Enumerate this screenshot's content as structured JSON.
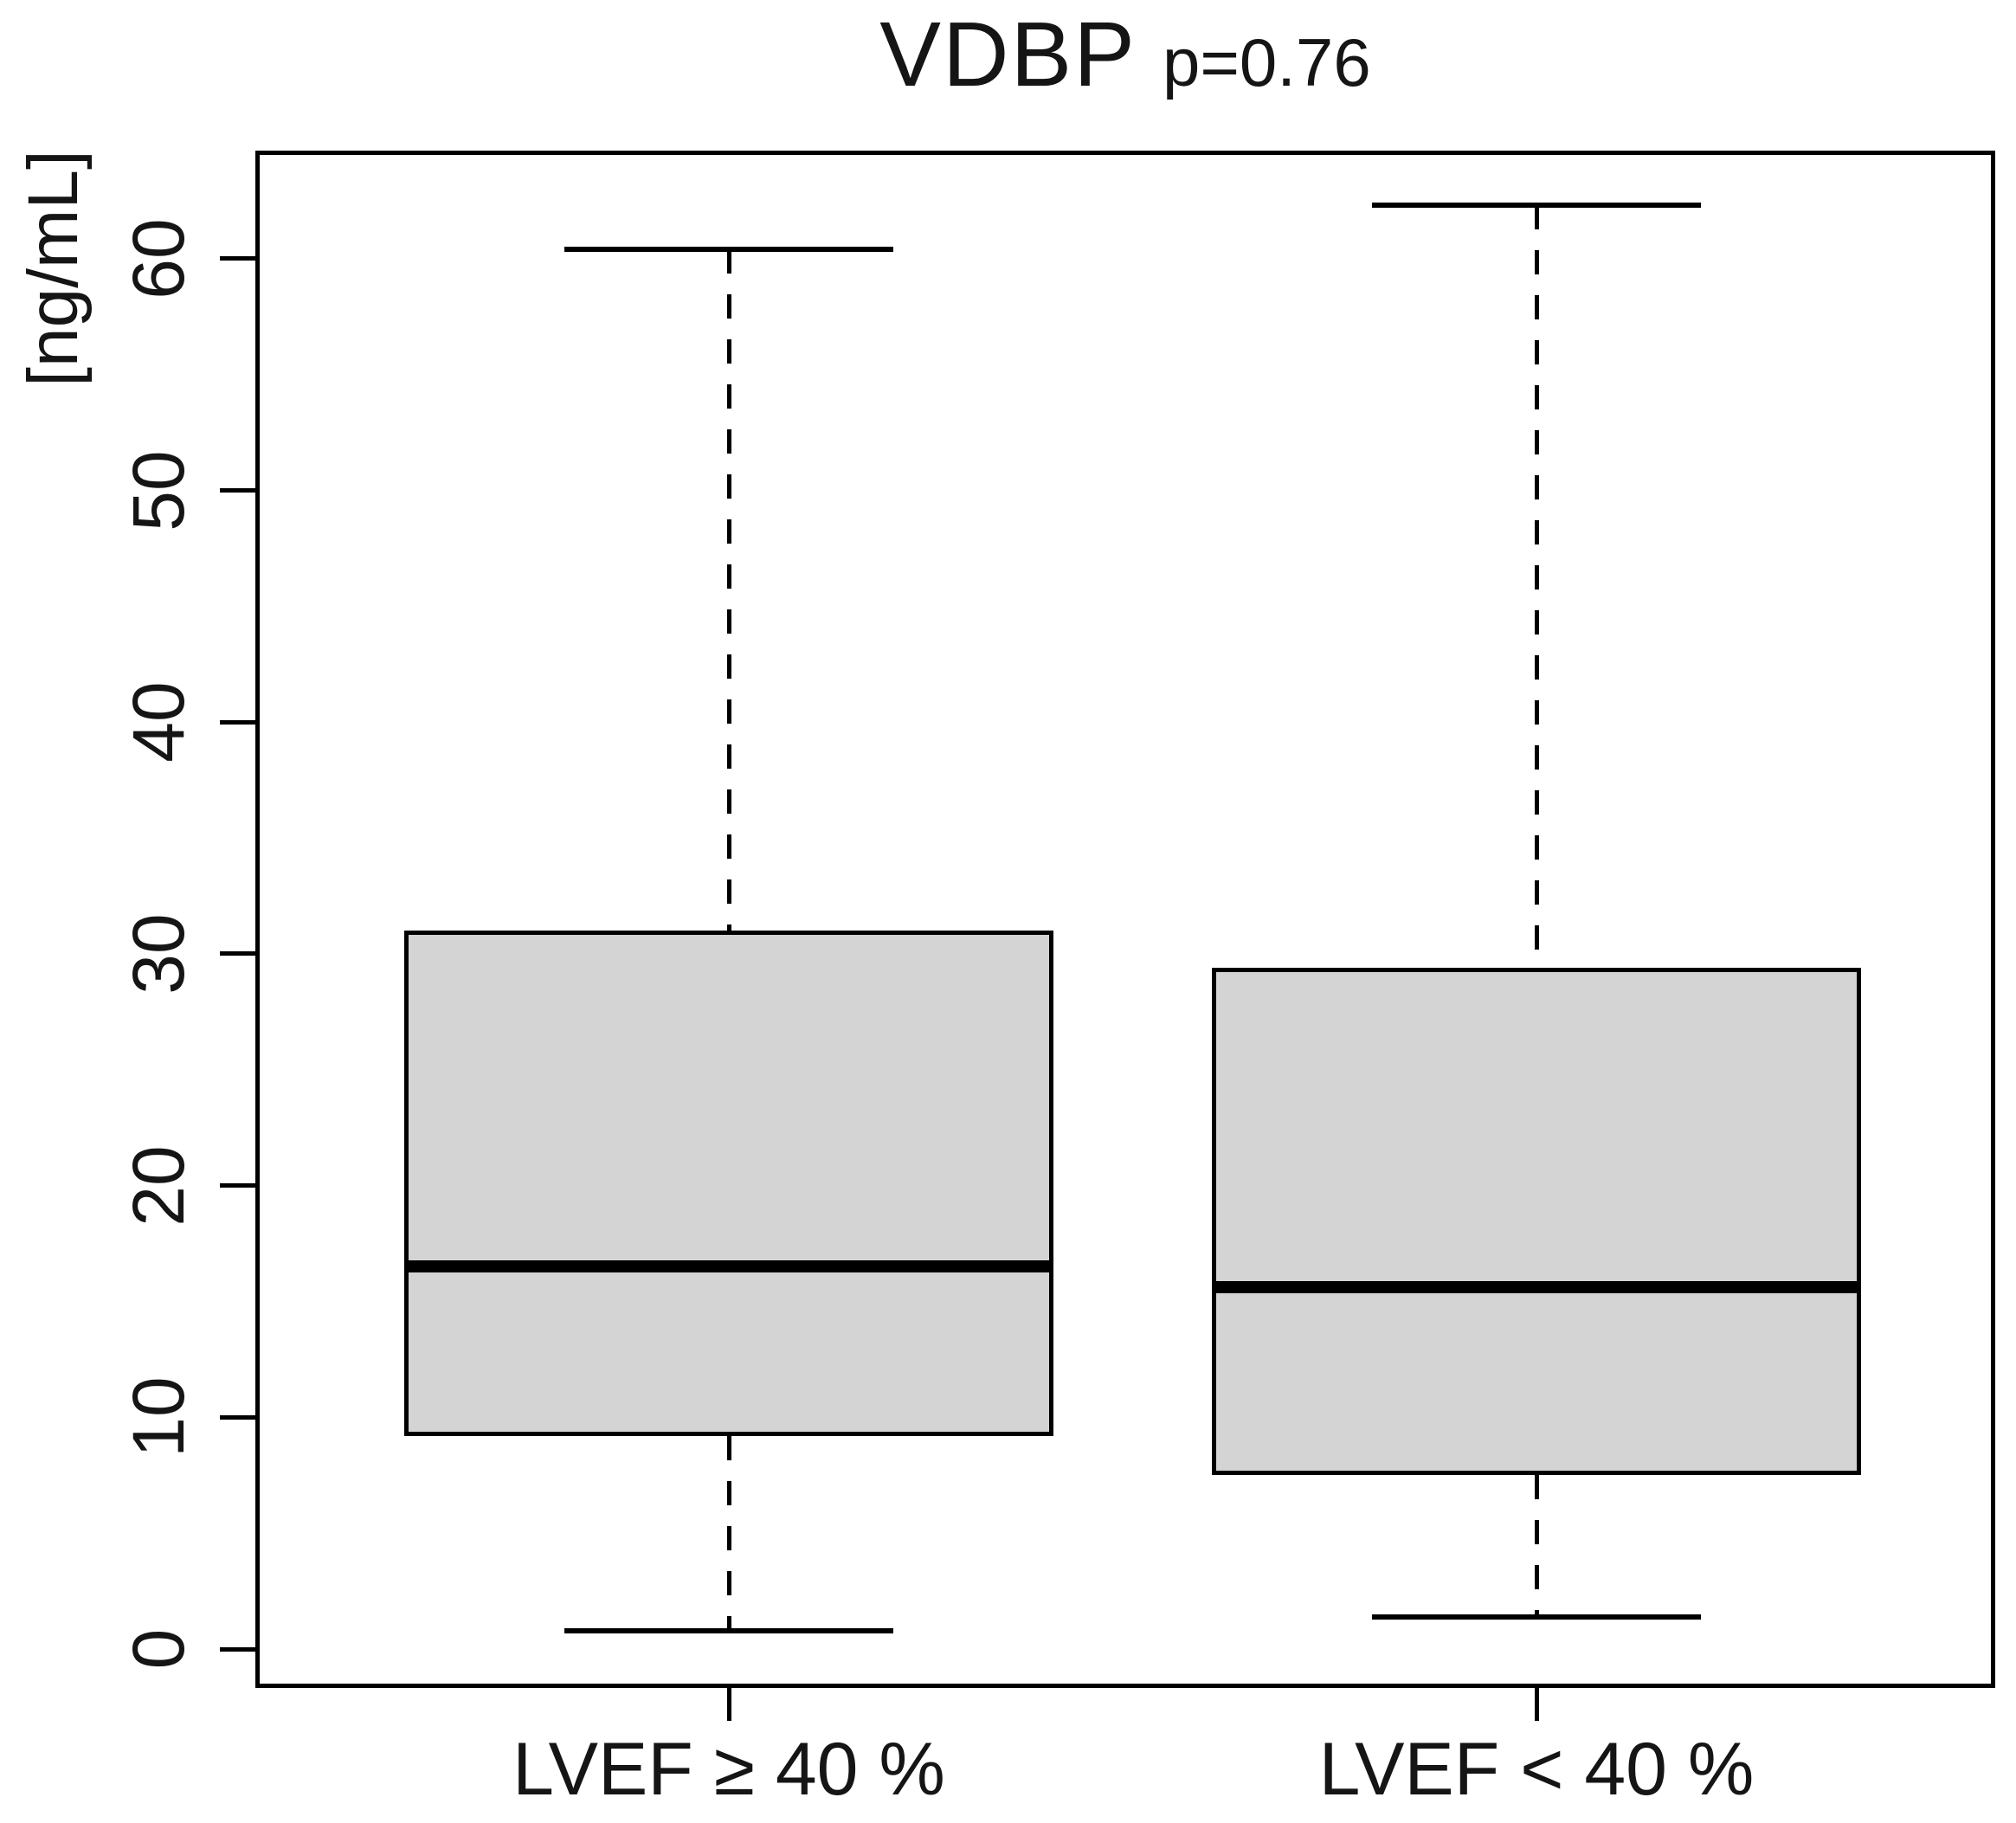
{
  "title": {
    "main": "VDBP",
    "pvalue": "p=0.76"
  },
  "y_axis": {
    "label": "[ng/mL]"
  },
  "chart_data": {
    "type": "boxplot",
    "title": "VDBP p=0.76",
    "ylabel": "[ng/mL]",
    "ylim": [
      -1.7,
      64.7
    ],
    "yticks": [
      0,
      10,
      20,
      30,
      40,
      50,
      60
    ],
    "grid": false,
    "box_fill": "#d4d4d4",
    "line_color": "#000000",
    "groups": [
      {
        "label": "LVEF ≥ 40 %",
        "whisker_low": 0.8,
        "q1": 9.2,
        "median": 16.5,
        "q3": 31.0,
        "whisker_high": 60.4
      },
      {
        "label": "LVEF < 40 %",
        "whisker_low": 1.4,
        "q1": 7.5,
        "median": 15.6,
        "q3": 29.4,
        "whisker_high": 62.3
      }
    ]
  }
}
